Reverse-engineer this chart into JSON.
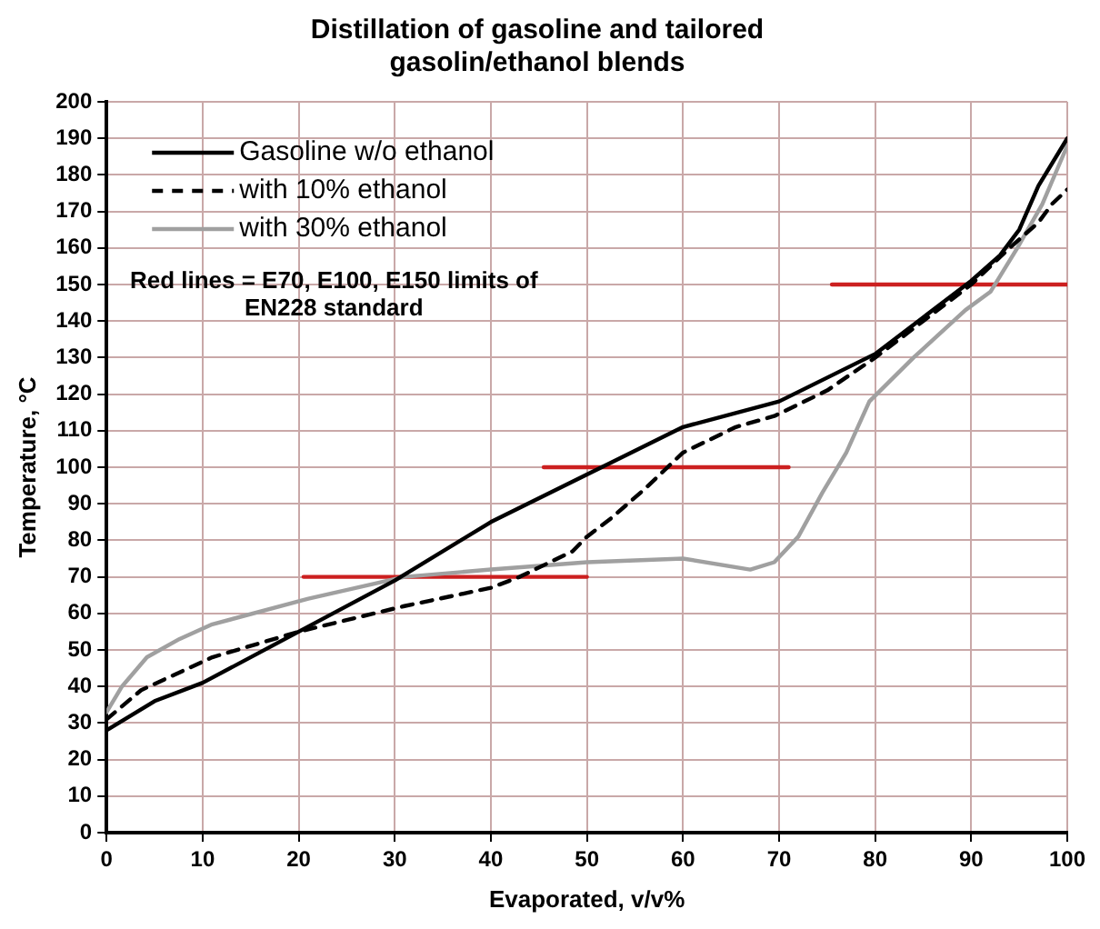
{
  "chart_data": {
    "type": "line",
    "title": "Distillation of gasoline and tailored gasolin/ethanol blends",
    "xlabel": "Evaporated, v/v%",
    "ylabel": "Temperature, °C",
    "xlim": [
      0,
      100
    ],
    "xticks": [
      0,
      10,
      20,
      30,
      40,
      50,
      60,
      70,
      80,
      90,
      100
    ],
    "ylim": [
      0,
      200
    ],
    "yticks": [
      0,
      10,
      20,
      30,
      40,
      50,
      60,
      70,
      80,
      90,
      100,
      110,
      120,
      130,
      140,
      150,
      160,
      170,
      180,
      190,
      200
    ],
    "grid": true,
    "legend": "top left",
    "marker": "none",
    "annotations": [
      "Red lines = E70, E100, E150 limits of EN228 standard"
    ],
    "series": [
      {
        "name": "Gasoline w/o ethanol",
        "color": "#000000",
        "line_style": "solid",
        "x": [
          0,
          5,
          10,
          20,
          30,
          40,
          50,
          60,
          70,
          80,
          85,
          90,
          93,
          95,
          97,
          100
        ],
        "values": [
          28,
          36,
          41,
          55,
          69,
          85,
          98,
          111,
          118,
          131,
          141,
          151,
          158,
          165,
          177,
          190
        ]
      },
      {
        "name": "with 10% ethanol",
        "color": "#000000",
        "line_style": "dashed",
        "x": [
          0,
          3.6,
          11,
          20,
          31,
          40,
          43,
          48.5,
          50,
          52.5,
          56,
          58,
          60,
          65.5,
          69.5,
          75,
          80,
          85,
          90,
          94,
          97,
          98.4,
          100
        ],
        "values": [
          31,
          39,
          48,
          55,
          62,
          67,
          70,
          77,
          81,
          86,
          94,
          99,
          104,
          111,
          114,
          121,
          130,
          140,
          150,
          160,
          167,
          172,
          176
        ]
      },
      {
        "name": "with 30% ethanol",
        "color": "#a0a0a0",
        "line_style": "solid",
        "x": [
          0,
          1.6,
          4.2,
          7.6,
          11,
          21,
          31,
          40,
          50,
          60,
          67,
          69.5,
          72,
          74.5,
          77,
          79.4,
          84,
          89.4,
          92,
          94.8,
          97.4,
          100
        ],
        "values": [
          33,
          40,
          48,
          53,
          57,
          64,
          70,
          72,
          74,
          75,
          72,
          74,
          81,
          93,
          104,
          118,
          130,
          143,
          148,
          160,
          172,
          188
        ]
      },
      {
        "color": "#cc2020",
        "line_style": "solid",
        "x": [
          20.5,
          50
        ],
        "values": [
          70,
          70
        ]
      },
      {
        "color": "#cc2020",
        "line_style": "solid",
        "x": [
          45.5,
          71
        ],
        "values": [
          100,
          100
        ]
      },
      {
        "color": "#cc2020",
        "line_style": "solid",
        "x": [
          75.5,
          100
        ],
        "values": [
          150,
          150
        ]
      }
    ]
  }
}
